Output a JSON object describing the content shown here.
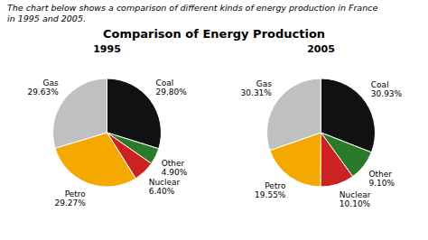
{
  "title": "Comparison of Energy Production",
  "subtitle": "The chart below shows a comparison of different kinds of energy production in France\nin 1995 and 2005.",
  "chart_data": [
    {
      "type": "pie",
      "title": "1995",
      "categories": [
        "Coal",
        "Other",
        "Nuclear",
        "Petro",
        "Gas"
      ],
      "values": [
        29.8,
        4.9,
        6.4,
        29.27,
        29.63
      ],
      "value_labels": [
        "29.80%",
        "4.90%",
        "6.40%",
        "29.27%",
        "29.63%"
      ],
      "colors": [
        "#111111",
        "#2a7a2a",
        "#cc2222",
        "#f5a800",
        "#c0c0c0"
      ],
      "data_labels": true
    },
    {
      "type": "pie",
      "title": "2005",
      "categories": [
        "Coal",
        "Other",
        "Nuclear",
        "Petro",
        "Gas"
      ],
      "values": [
        30.93,
        9.1,
        10.1,
        19.55,
        30.31
      ],
      "value_labels": [
        "30.93%",
        "9.10%",
        "10.10%",
        "19.55%",
        "30.31%"
      ],
      "colors": [
        "#111111",
        "#2a7a2a",
        "#cc2222",
        "#f5a800",
        "#c0c0c0"
      ],
      "data_labels": true
    }
  ]
}
